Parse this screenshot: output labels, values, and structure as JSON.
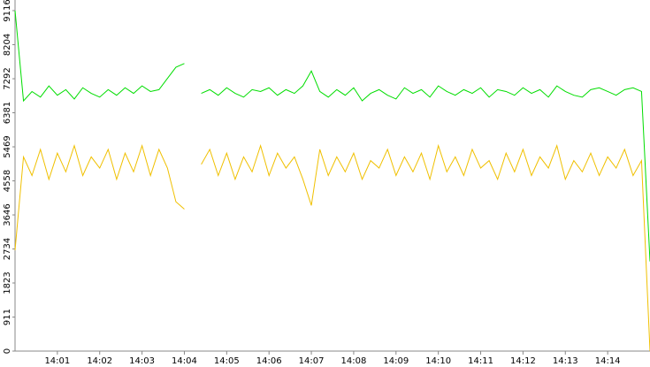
{
  "chart_data": {
    "type": "line",
    "x": [
      0,
      0.2,
      0.4,
      0.6,
      0.8,
      1,
      1.2,
      1.4,
      1.6,
      1.8,
      2,
      2.2,
      2.4,
      2.6,
      2.8,
      3,
      3.2,
      3.4,
      3.6,
      3.8,
      4,
      4.2,
      4.4,
      4.6,
      4.8,
      5,
      5.2,
      5.4,
      5.6,
      5.8,
      6,
      6.2,
      6.4,
      6.6,
      6.8,
      7,
      7.2,
      7.4,
      7.6,
      7.8,
      8,
      8.2,
      8.4,
      8.6,
      8.8,
      9,
      9.2,
      9.4,
      9.6,
      9.8,
      10,
      10.2,
      10.4,
      10.6,
      10.8,
      11,
      11.2,
      11.4,
      11.6,
      11.8,
      12,
      12.2,
      12.4,
      12.6,
      12.8,
      13,
      13.2,
      13.4,
      13.6,
      13.8,
      14,
      14.2,
      14.4,
      14.6,
      14.8,
      15
    ],
    "series": [
      {
        "color": "#00dd00",
        "values": [
          9116,
          6700,
          6950,
          6800,
          7100,
          6850,
          7000,
          6750,
          7050,
          6900,
          6800,
          7000,
          6850,
          7050,
          6900,
          7100,
          6950,
          7000,
          7300,
          7600,
          7700,
          null,
          6900,
          7000,
          6850,
          7050,
          6900,
          6800,
          7000,
          6950,
          7050,
          6850,
          7000,
          6900,
          7100,
          7500,
          6950,
          6800,
          7000,
          6850,
          7050,
          6700,
          6900,
          7000,
          6850,
          6750,
          7050,
          6900,
          7000,
          6800,
          7100,
          6950,
          6850,
          7000,
          6900,
          7050,
          6800,
          7000,
          6950,
          6850,
          7050,
          6900,
          7000,
          6800,
          7100,
          6950,
          6850,
          6800,
          7000,
          7050,
          6950,
          6850,
          7000,
          7050,
          6950,
          2400
        ]
      },
      {
        "color": "#f0c000",
        "values": [
          2700,
          5200,
          4700,
          5400,
          4600,
          5300,
          4800,
          5500,
          4700,
          5200,
          4900,
          5400,
          4600,
          5300,
          4800,
          5500,
          4700,
          5400,
          4900,
          4000,
          3800,
          null,
          5000,
          5400,
          4700,
          5300,
          4600,
          5200,
          4800,
          5500,
          4700,
          5300,
          4900,
          5200,
          4600,
          3900,
          5400,
          4700,
          5200,
          4800,
          5300,
          4600,
          5100,
          4900,
          5400,
          4700,
          5200,
          4800,
          5300,
          4600,
          5500,
          4800,
          5200,
          4700,
          5400,
          4900,
          5100,
          4600,
          5300,
          4800,
          5400,
          4700,
          5200,
          4900,
          5500,
          4600,
          5100,
          4800,
          5300,
          4700,
          5200,
          4900,
          5400,
          4700,
          5100,
          0
        ]
      }
    ],
    "xlim": [
      0,
      15
    ],
    "xticks": [
      {
        "value": 1,
        "label": "14:01"
      },
      {
        "value": 2,
        "label": "14:02"
      },
      {
        "value": 3,
        "label": "14:03"
      },
      {
        "value": 4,
        "label": "14:04"
      },
      {
        "value": 5,
        "label": "14:05"
      },
      {
        "value": 6,
        "label": "14:06"
      },
      {
        "value": 7,
        "label": "14:07"
      },
      {
        "value": 8,
        "label": "14:08"
      },
      {
        "value": 9,
        "label": "14:09"
      },
      {
        "value": 10,
        "label": "14:10"
      },
      {
        "value": 11,
        "label": "14:11"
      },
      {
        "value": 12,
        "label": "14:12"
      },
      {
        "value": 13,
        "label": "14:13"
      },
      {
        "value": 14,
        "label": "14:14"
      }
    ],
    "ylim": [
      0,
      9116
    ],
    "yticks": [
      0,
      911,
      1823,
      2734,
      3646,
      4558,
      5469,
      6381,
      7292,
      8204,
      9116
    ]
  }
}
